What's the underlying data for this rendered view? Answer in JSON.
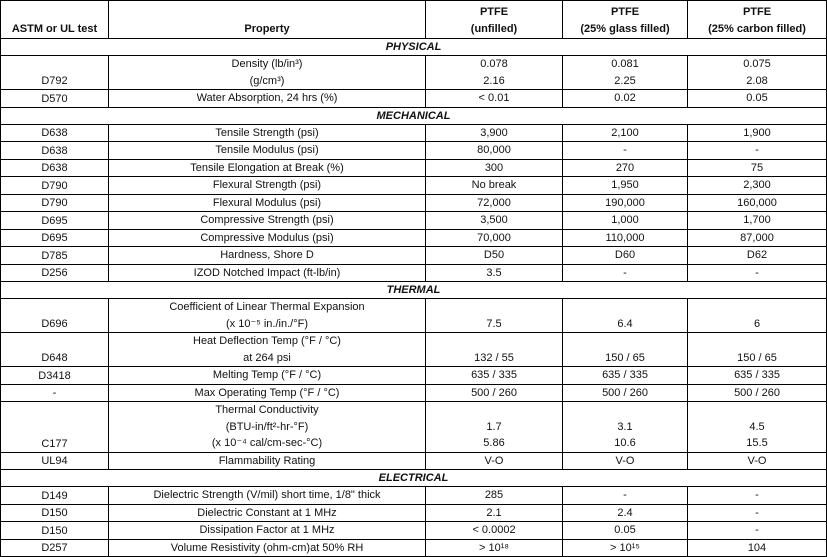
{
  "header": [
    "ASTM or UL test",
    "Property",
    "PTFE\n(unfilled)",
    "PTFE\n(25% glass filled)",
    "PTFE\n(25% carbon filled)"
  ],
  "sections": [
    {
      "title": "PHYSICAL",
      "rows": [
        {
          "test": "D792",
          "property": [
            "Density (lb/in³)",
            "(g/cm³)"
          ],
          "unfilled": [
            "0.078",
            "2.16"
          ],
          "glass": [
            "0.081",
            "2.25"
          ],
          "carbon": [
            "0.075",
            "2.08"
          ]
        },
        {
          "test": "D570",
          "property": [
            "Water Absorption, 24 hrs (%)"
          ],
          "unfilled": [
            "< 0.01"
          ],
          "glass": [
            "0.02"
          ],
          "carbon": [
            "0.05"
          ]
        }
      ]
    },
    {
      "title": "MECHANICAL",
      "rows": [
        {
          "test": "D638",
          "property": [
            "Tensile Strength (psi)"
          ],
          "unfilled": [
            "3,900"
          ],
          "glass": [
            "2,100"
          ],
          "carbon": [
            "1,900"
          ]
        },
        {
          "test": "D638",
          "property": [
            "Tensile Modulus (psi)"
          ],
          "unfilled": [
            "80,000"
          ],
          "glass": [
            "-"
          ],
          "carbon": [
            "-"
          ]
        },
        {
          "test": "D638",
          "property": [
            "Tensile Elongation at Break (%)"
          ],
          "unfilled": [
            "300"
          ],
          "glass": [
            "270"
          ],
          "carbon": [
            "75"
          ]
        },
        {
          "test": "D790",
          "property": [
            "Flexural Strength (psi)"
          ],
          "unfilled": [
            "No break"
          ],
          "glass": [
            "1,950"
          ],
          "carbon": [
            "2,300"
          ]
        },
        {
          "test": "D790",
          "property": [
            "Flexural Modulus (psi)"
          ],
          "unfilled": [
            "72,000"
          ],
          "glass": [
            "190,000"
          ],
          "carbon": [
            "160,000"
          ]
        },
        {
          "test": "D695",
          "property": [
            "Compressive Strength (psi)"
          ],
          "unfilled": [
            "3,500"
          ],
          "glass": [
            "1,000"
          ],
          "carbon": [
            "1,700"
          ]
        },
        {
          "test": "D695",
          "property": [
            "Compressive Modulus (psi)"
          ],
          "unfilled": [
            "70,000"
          ],
          "glass": [
            "110,000"
          ],
          "carbon": [
            "87,000"
          ]
        },
        {
          "test": "D785",
          "property": [
            "Hardness, Shore D"
          ],
          "unfilled": [
            "D50"
          ],
          "glass": [
            "D60"
          ],
          "carbon": [
            "D62"
          ]
        },
        {
          "test": "D256",
          "property": [
            "IZOD Notched Impact (ft-lb/in)"
          ],
          "unfilled": [
            "3.5"
          ],
          "glass": [
            "-"
          ],
          "carbon": [
            "-"
          ]
        }
      ]
    },
    {
      "title": "THERMAL",
      "rows": [
        {
          "test": "D696",
          "property": [
            "Coefficient of Linear Thermal Expansion",
            "(x 10⁻⁵ in./in./°F)"
          ],
          "unfilled": [
            "7.5"
          ],
          "glass": [
            "6.4"
          ],
          "carbon": [
            "6"
          ]
        },
        {
          "test": "D648",
          "property": [
            "Heat Deflection Temp (°F / °C)",
            "at 264 psi"
          ],
          "unfilled": [
            "132 / 55"
          ],
          "glass": [
            "150 / 65"
          ],
          "carbon": [
            "150 / 65"
          ]
        },
        {
          "test": "D3418",
          "property": [
            "Melting Temp (°F / °C)"
          ],
          "unfilled": [
            "635 / 335"
          ],
          "glass": [
            "635 / 335"
          ],
          "carbon": [
            "635 / 335"
          ]
        },
        {
          "test": "-",
          "property": [
            "Max Operating Temp (°F / °C)"
          ],
          "unfilled": [
            "500 / 260"
          ],
          "glass": [
            "500 / 260"
          ],
          "carbon": [
            "500 / 260"
          ]
        },
        {
          "test": "C177",
          "property": [
            "Thermal Conductivity",
            "(BTU-in/ft²-hr-°F)",
            "(x 10⁻⁴ cal/cm-sec-°C)"
          ],
          "unfilled": [
            "1.7",
            "5.86"
          ],
          "glass": [
            "3.1",
            "10.6"
          ],
          "carbon": [
            "4.5",
            "15.5"
          ]
        },
        {
          "test": "UL94",
          "property": [
            "Flammability Rating"
          ],
          "unfilled": [
            "V-O"
          ],
          "glass": [
            "V-O"
          ],
          "carbon": [
            "V-O"
          ]
        }
      ]
    },
    {
      "title": "ELECTRICAL",
      "rows": [
        {
          "test": "D149",
          "property": [
            "Dielectric Strength (V/mil) short time, 1/8\" thick"
          ],
          "unfilled": [
            "285"
          ],
          "glass": [
            "-"
          ],
          "carbon": [
            "-"
          ]
        },
        {
          "test": "D150",
          "property": [
            "Dielectric Constant at 1 MHz"
          ],
          "unfilled": [
            "2.1"
          ],
          "glass": [
            "2.4"
          ],
          "carbon": [
            "-"
          ]
        },
        {
          "test": "D150",
          "property": [
            "Dissipation Factor at 1 MHz"
          ],
          "unfilled": [
            "< 0.0002"
          ],
          "glass": [
            "0.05"
          ],
          "carbon": [
            "-"
          ]
        },
        {
          "test": "D257",
          "property": [
            "Volume Resistivity (ohm-cm)at 50% RH"
          ],
          "unfilled": [
            "> 10¹⁸"
          ],
          "glass": [
            "> 10¹⁵"
          ],
          "carbon": [
            "104"
          ]
        }
      ]
    }
  ]
}
